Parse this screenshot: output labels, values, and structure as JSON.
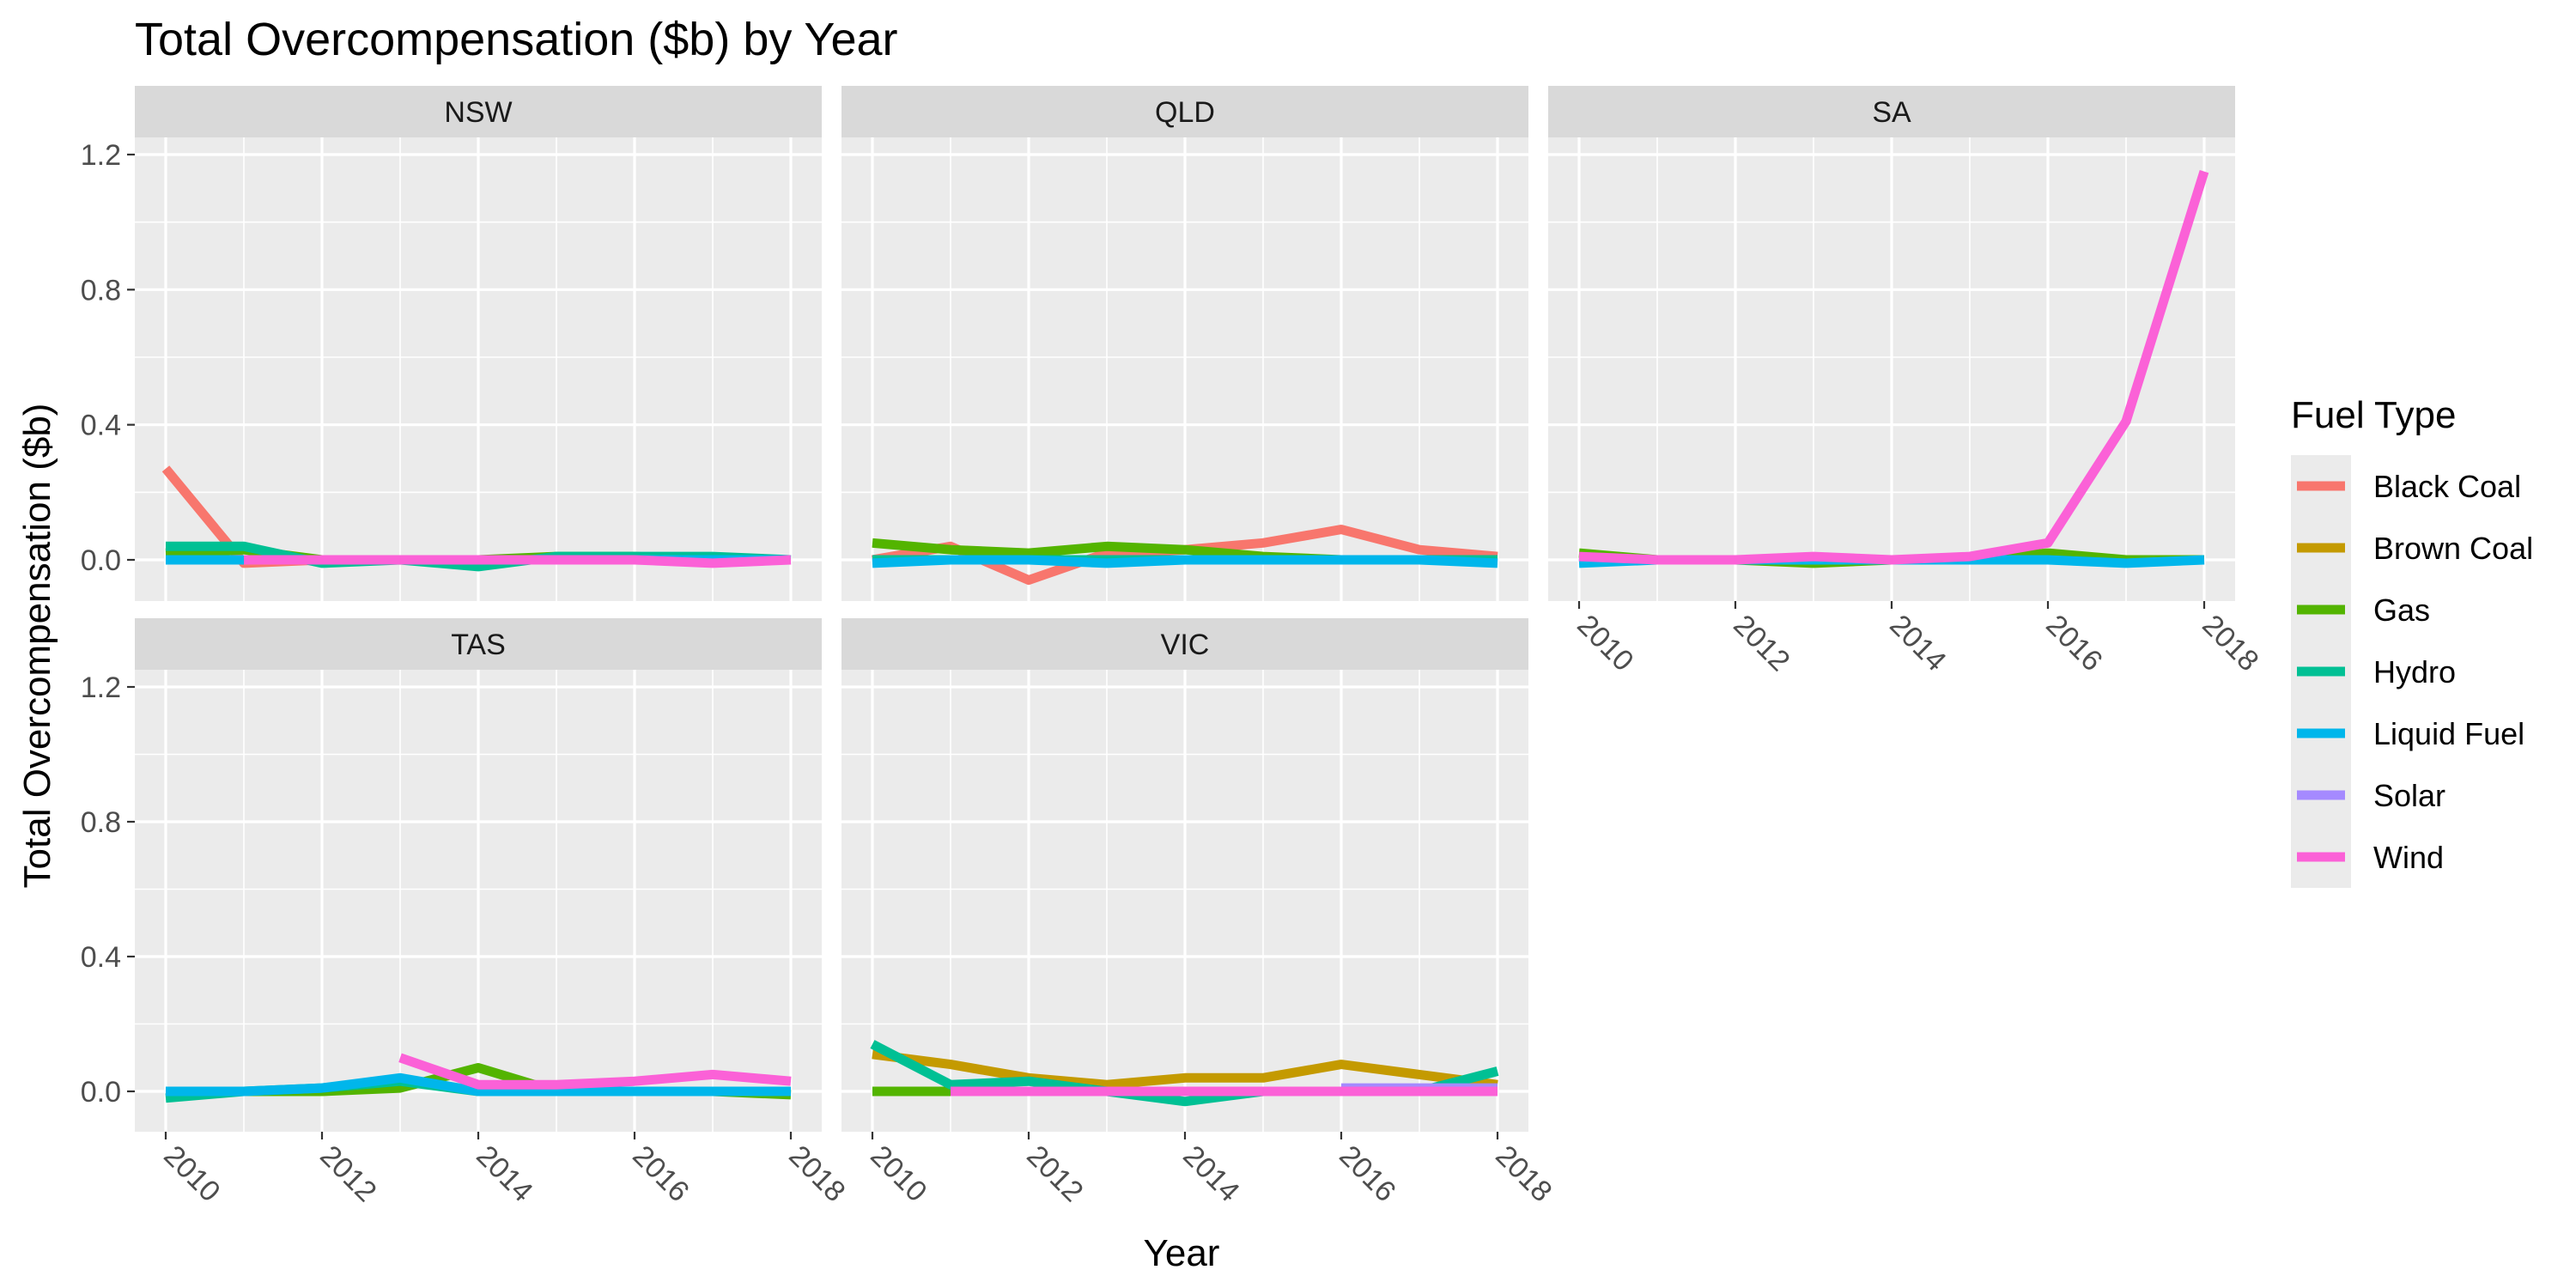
{
  "chart_data": {
    "type": "line",
    "title": "Total Overcompensation ($b) by Year",
    "xlabel": "Year",
    "ylabel": "Total Overcompensation ($b)",
    "x": [
      2010,
      2011,
      2012,
      2013,
      2014,
      2015,
      2016,
      2017,
      2018
    ],
    "xlim": [
      2010,
      2018
    ],
    "xticks": [
      2010,
      2012,
      2014,
      2016,
      2018
    ],
    "ylim": [
      -0.12,
      1.2
    ],
    "yticks": [
      0.0,
      0.4,
      0.8,
      1.2
    ],
    "ytick_labels": [
      "0.0",
      "0.4",
      "0.8",
      "1.2"
    ],
    "grid": true,
    "legend": {
      "title": "Fuel Type",
      "placement": "right",
      "entries": [
        {
          "name": "Black Coal",
          "color": "#F8766D"
        },
        {
          "name": "Brown Coal",
          "color": "#C49A00"
        },
        {
          "name": "Gas",
          "color": "#53B400"
        },
        {
          "name": "Hydro",
          "color": "#00C094"
        },
        {
          "name": "Liquid Fuel",
          "color": "#00B6EB"
        },
        {
          "name": "Solar",
          "color": "#A58AFF"
        },
        {
          "name": "Wind",
          "color": "#FB61D7"
        }
      ]
    },
    "facets": [
      {
        "name": "NSW",
        "series": [
          {
            "name": "Black Coal",
            "x": [
              2010,
              2011,
              2012,
              2013,
              2014,
              2015,
              2016,
              2017,
              2018
            ],
            "values": [
              0.27,
              -0.01,
              0.0,
              0.0,
              0.0,
              0.0,
              0.0,
              0.0,
              0.0
            ]
          },
          {
            "name": "Gas",
            "x": [
              2010,
              2011,
              2012,
              2013,
              2014,
              2015,
              2016,
              2017,
              2018
            ],
            "values": [
              0.02,
              0.03,
              0.0,
              0.0,
              0.0,
              0.01,
              0.01,
              0.0,
              0.0
            ]
          },
          {
            "name": "Hydro",
            "x": [
              2010,
              2011,
              2012,
              2013,
              2014,
              2015,
              2016,
              2017,
              2018
            ],
            "values": [
              0.04,
              0.04,
              -0.01,
              0.0,
              -0.02,
              0.01,
              0.01,
              0.01,
              0.0
            ]
          },
          {
            "name": "Liquid Fuel",
            "x": [
              2010,
              2011,
              2012,
              2013,
              2014,
              2015,
              2016,
              2017,
              2018
            ],
            "values": [
              0.0,
              0.0,
              0.0,
              0.0,
              0.0,
              0.0,
              0.0,
              0.0,
              0.0
            ]
          },
          {
            "name": "Wind",
            "x": [
              2011,
              2012,
              2013,
              2014,
              2015,
              2016,
              2017,
              2018
            ],
            "values": [
              0.0,
              0.0,
              0.0,
              0.0,
              0.0,
              0.0,
              -0.01,
              0.0
            ]
          }
        ]
      },
      {
        "name": "QLD",
        "series": [
          {
            "name": "Black Coal",
            "x": [
              2010,
              2011,
              2012,
              2013,
              2014,
              2015,
              2016,
              2017,
              2018
            ],
            "values": [
              0.0,
              0.04,
              -0.06,
              0.02,
              0.03,
              0.05,
              0.09,
              0.03,
              0.01
            ]
          },
          {
            "name": "Gas",
            "x": [
              2010,
              2011,
              2012,
              2013,
              2014,
              2015,
              2016,
              2017,
              2018
            ],
            "values": [
              0.05,
              0.03,
              0.02,
              0.04,
              0.03,
              0.01,
              0.0,
              0.0,
              0.0
            ]
          },
          {
            "name": "Hydro",
            "x": [
              2010,
              2011,
              2012,
              2013,
              2014,
              2015,
              2016,
              2017,
              2018
            ],
            "values": [
              0.0,
              0.0,
              0.0,
              0.0,
              0.0,
              0.0,
              0.0,
              0.0,
              0.0
            ]
          },
          {
            "name": "Liquid Fuel",
            "x": [
              2010,
              2011,
              2012,
              2013,
              2014,
              2015,
              2016,
              2017,
              2018
            ],
            "values": [
              -0.01,
              0.0,
              0.0,
              -0.01,
              0.0,
              0.0,
              0.0,
              0.0,
              -0.01
            ]
          }
        ]
      },
      {
        "name": "SA",
        "series": [
          {
            "name": "Gas",
            "x": [
              2010,
              2011,
              2012,
              2013,
              2014,
              2015,
              2016,
              2017,
              2018
            ],
            "values": [
              0.02,
              0.0,
              0.0,
              -0.01,
              0.0,
              0.0,
              0.02,
              0.0,
              0.0
            ]
          },
          {
            "name": "Liquid Fuel",
            "x": [
              2010,
              2011,
              2012,
              2013,
              2014,
              2015,
              2016,
              2017,
              2018
            ],
            "values": [
              -0.01,
              0.0,
              0.0,
              0.0,
              0.0,
              0.0,
              0.0,
              -0.01,
              0.0
            ]
          },
          {
            "name": "Wind",
            "x": [
              2010,
              2011,
              2012,
              2013,
              2014,
              2015,
              2016,
              2017,
              2018
            ],
            "values": [
              0.01,
              0.0,
              0.0,
              0.01,
              0.0,
              0.01,
              0.05,
              0.41,
              1.15
            ]
          }
        ]
      },
      {
        "name": "TAS",
        "series": [
          {
            "name": "Gas",
            "x": [
              2010,
              2011,
              2012,
              2013,
              2014,
              2015,
              2016,
              2017,
              2018
            ],
            "values": [
              0.0,
              0.0,
              0.0,
              0.01,
              0.07,
              0.0,
              0.0,
              0.0,
              -0.01
            ]
          },
          {
            "name": "Hydro",
            "x": [
              2010,
              2011,
              2012,
              2013,
              2014,
              2015,
              2016,
              2017,
              2018
            ],
            "values": [
              -0.02,
              0.0,
              0.01,
              0.03,
              0.0,
              0.0,
              0.0,
              0.0,
              0.0
            ]
          },
          {
            "name": "Liquid Fuel",
            "x": [
              2010,
              2011,
              2012,
              2013,
              2014,
              2015,
              2016,
              2017,
              2018
            ],
            "values": [
              0.0,
              0.0,
              0.01,
              0.04,
              0.0,
              0.0,
              0.0,
              0.0,
              0.0
            ]
          },
          {
            "name": "Wind",
            "x": [
              2013,
              2014,
              2015,
              2016,
              2017,
              2018
            ],
            "values": [
              0.1,
              0.02,
              0.02,
              0.03,
              0.05,
              0.03
            ]
          }
        ]
      },
      {
        "name": "VIC",
        "series": [
          {
            "name": "Black Coal",
            "x": [
              2010,
              2011,
              2012,
              2013,
              2014,
              2015,
              2016,
              2017,
              2018
            ],
            "values": [
              0.0,
              0.0,
              0.0,
              0.0,
              0.0,
              0.0,
              0.0,
              0.0,
              0.0
            ]
          },
          {
            "name": "Brown Coal",
            "x": [
              2010,
              2011,
              2012,
              2013,
              2014,
              2015,
              2016,
              2017,
              2018
            ],
            "values": [
              0.11,
              0.08,
              0.04,
              0.02,
              0.04,
              0.04,
              0.08,
              0.05,
              0.02
            ]
          },
          {
            "name": "Gas",
            "x": [
              2010,
              2011,
              2012,
              2013,
              2014,
              2015,
              2016,
              2017,
              2018
            ],
            "values": [
              0.0,
              0.0,
              0.0,
              0.0,
              0.0,
              0.0,
              0.0,
              0.0,
              0.0
            ]
          },
          {
            "name": "Hydro",
            "x": [
              2010,
              2011,
              2012,
              2013,
              2014,
              2015,
              2016,
              2017,
              2018
            ],
            "values": [
              0.14,
              0.02,
              0.03,
              0.0,
              -0.03,
              0.0,
              0.0,
              0.0,
              0.06
            ]
          },
          {
            "name": "Solar",
            "x": [
              2016,
              2017,
              2018
            ],
            "values": [
              0.01,
              0.01,
              0.01
            ]
          },
          {
            "name": "Wind",
            "x": [
              2011,
              2012,
              2013,
              2014,
              2015,
              2016,
              2017,
              2018
            ],
            "values": [
              0.0,
              0.0,
              0.0,
              0.0,
              0.0,
              0.0,
              0.0,
              0.0
            ]
          }
        ]
      }
    ]
  }
}
